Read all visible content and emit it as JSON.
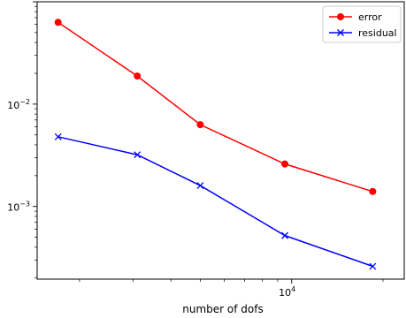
{
  "chart_data": {
    "type": "line",
    "title": "",
    "xlabel": "number of dofs",
    "ylabel": "",
    "xscale": "log",
    "yscale": "log",
    "xlim": [
      1450,
      23500
    ],
    "ylim": [
      0.000195,
      0.1
    ],
    "grid": false,
    "legend_position": "top-right",
    "x_tick_labels": [
      {
        "value": 10000,
        "base": "10",
        "exp": "4"
      }
    ],
    "y_tick_labels": [
      {
        "value": 0.01,
        "base": "10",
        "exp": "−2"
      },
      {
        "value": 0.001,
        "base": "10",
        "exp": "−3"
      }
    ],
    "series": [
      {
        "name": "error",
        "color": "#ff0000",
        "marker": "circle",
        "x": [
          1700,
          3100,
          5000,
          9500,
          18500
        ],
        "y": [
          0.063,
          0.0188,
          0.0063,
          0.0026,
          0.0014
        ]
      },
      {
        "name": "residual",
        "color": "#0000ff",
        "marker": "x",
        "x": [
          1700,
          3100,
          5000,
          9500,
          18500
        ],
        "y": [
          0.0048,
          0.0032,
          0.0016,
          0.00052,
          0.00026
        ]
      }
    ]
  }
}
